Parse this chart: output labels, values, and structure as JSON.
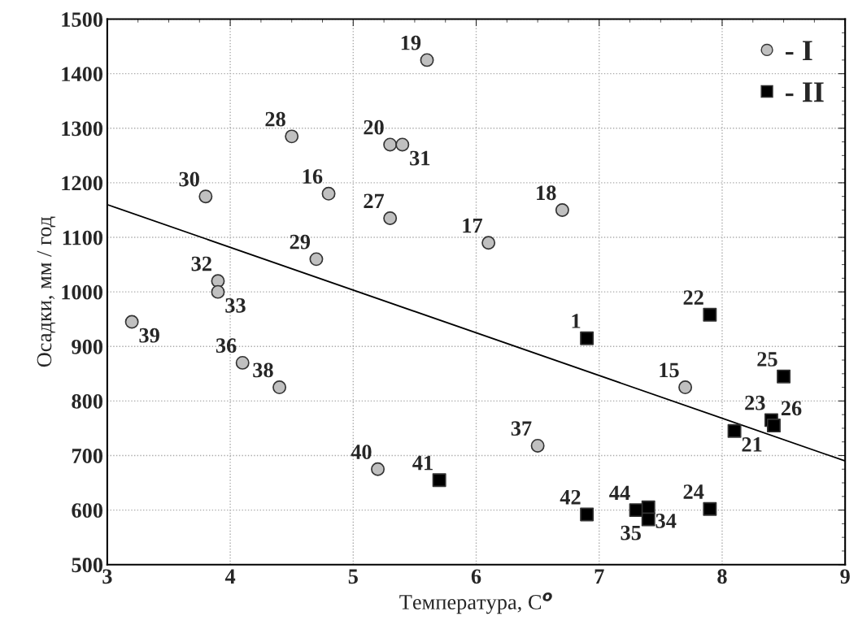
{
  "chart_data": {
    "type": "scatter",
    "xlabel": "Температура, C$^{o}$",
    "ylabel": "Осадки, мм / год",
    "xlim": [
      3,
      9
    ],
    "xticks": [
      3,
      4,
      5,
      6,
      7,
      8,
      9
    ],
    "ylim": [
      500,
      1500
    ],
    "yticks": [
      500,
      600,
      700,
      800,
      900,
      1000,
      1100,
      1200,
      1300,
      1400,
      1500
    ],
    "grid": true,
    "legend": "top right",
    "series": [
      {
        "name": "- I",
        "marker": "circle",
        "color": "#c0c0c0",
        "x": [
          5.6,
          4.5,
          5.3,
          5.4,
          3.8,
          4.8,
          5.3,
          6.1,
          6.7,
          4.7,
          3.9,
          3.9,
          3.2,
          4.1,
          4.4,
          7.7,
          6.5,
          5.2
        ],
        "values": [
          1425,
          1285,
          1270,
          1270,
          1175,
          1180,
          1135,
          1090,
          1150,
          1060,
          1020,
          1000,
          945,
          870,
          825,
          825,
          718,
          675
        ]
      },
      {
        "name": "- II",
        "marker": "square",
        "color": "#000000",
        "x": [
          6.9,
          7.9,
          8.5,
          8.4,
          8.42,
          8.1,
          5.7,
          6.9,
          7.3,
          7.4,
          7.4,
          7.9
        ],
        "values": [
          915,
          958,
          845,
          765,
          755,
          745,
          655,
          592,
          600,
          605,
          583,
          602
        ]
      },
      {
        "type": "line",
        "color": "#000000",
        "marker": "none",
        "line_style": "solid",
        "x": [
          3,
          9
        ],
        "values": [
          1160,
          690
        ]
      }
    ],
    "annotations": [
      {
        "text": "19",
        "x": 5.6,
        "y": 1425
      },
      {
        "text": "28",
        "x": 4.5,
        "y": 1285
      },
      {
        "text": "20",
        "x": 5.3,
        "y": 1270
      },
      {
        "text": "31",
        "x": 5.4,
        "y": 1270
      },
      {
        "text": "30",
        "x": 3.8,
        "y": 1175
      },
      {
        "text": "16",
        "x": 4.8,
        "y": 1180
      },
      {
        "text": "27",
        "x": 5.3,
        "y": 1135
      },
      {
        "text": "17",
        "x": 6.1,
        "y": 1090
      },
      {
        "text": "18",
        "x": 6.7,
        "y": 1150
      },
      {
        "text": "29",
        "x": 4.7,
        "y": 1060
      },
      {
        "text": "32",
        "x": 3.9,
        "y": 1020
      },
      {
        "text": "33",
        "x": 3.9,
        "y": 1000
      },
      {
        "text": "39",
        "x": 3.2,
        "y": 945
      },
      {
        "text": "36",
        "x": 4.1,
        "y": 870
      },
      {
        "text": "38",
        "x": 4.4,
        "y": 825
      },
      {
        "text": "15",
        "x": 7.7,
        "y": 825
      },
      {
        "text": "37",
        "x": 6.5,
        "y": 718
      },
      {
        "text": "40",
        "x": 5.2,
        "y": 675
      },
      {
        "text": "1",
        "x": 6.9,
        "y": 915
      },
      {
        "text": "22",
        "x": 7.9,
        "y": 958
      },
      {
        "text": "25",
        "x": 8.5,
        "y": 845
      },
      {
        "text": "23",
        "x": 8.4,
        "y": 765
      },
      {
        "text": "26",
        "x": 8.42,
        "y": 755
      },
      {
        "text": "21",
        "x": 8.1,
        "y": 745
      },
      {
        "text": "41",
        "x": 5.7,
        "y": 655
      },
      {
        "text": "42",
        "x": 6.9,
        "y": 592
      },
      {
        "text": "44",
        "x": 7.3,
        "y": 600
      },
      {
        "text": "34",
        "x": 7.4,
        "y": 605
      },
      {
        "text": "35",
        "x": 7.4,
        "y": 583
      },
      {
        "text": "24",
        "x": 7.9,
        "y": 602
      }
    ]
  }
}
